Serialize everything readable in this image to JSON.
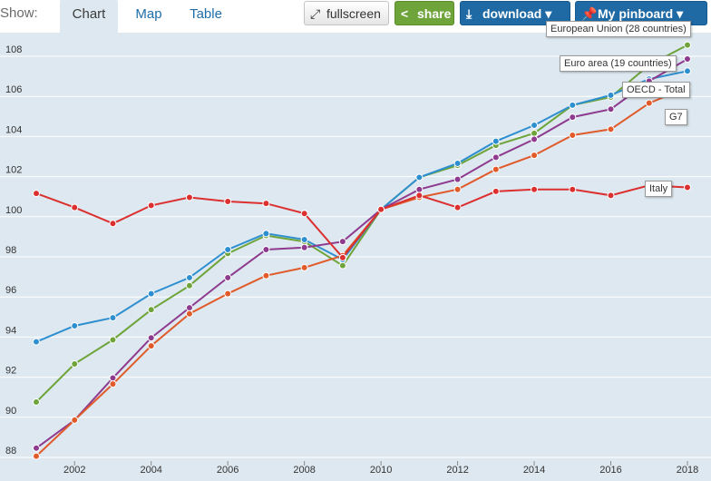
{
  "toolbar": {
    "show_label": "Show:",
    "tabs": [
      {
        "label": "Chart",
        "active": true
      },
      {
        "label": "Map",
        "active": false
      },
      {
        "label": "Table",
        "active": false
      }
    ],
    "fullscreen_label": "fullscreen",
    "share_label": "share",
    "download_label": "download ▾",
    "pinboard_label": "My pinboard ▾",
    "icons": [
      "fullscreen-icon",
      "share-icon",
      "download-icon",
      "pin-icon"
    ],
    "colors": {
      "share": "#6ea43a",
      "download": "#1f6aa5",
      "pinboard": "#1f6aa5"
    }
  },
  "chart_data": {
    "type": "line",
    "x": [
      2001,
      2002,
      2003,
      2004,
      2005,
      2006,
      2007,
      2008,
      2009,
      2010,
      2011,
      2012,
      2013,
      2014,
      2015,
      2016,
      2017,
      2018
    ],
    "x_tick_labels": [
      "2002",
      "2004",
      "2006",
      "2008",
      "2010",
      "2012",
      "2014",
      "2016",
      "2018"
    ],
    "y_tick_labels": [
      "88",
      "90",
      "92",
      "94",
      "96",
      "98",
      "100",
      "102",
      "104",
      "106",
      "108"
    ],
    "ylim": [
      87.3,
      108.8
    ],
    "xlim": [
      2000.9,
      2018.6
    ],
    "grid": true,
    "series": [
      {
        "name": "OECD - Total",
        "color": "#2e8fd0",
        "values": [
          93.4,
          94.2,
          94.6,
          95.8,
          96.6,
          98.0,
          98.8,
          98.5,
          97.5,
          100.0,
          101.6,
          102.3,
          103.4,
          104.2,
          105.2,
          105.7,
          106.5,
          106.9
        ]
      },
      {
        "name": "European Union (28 countries)",
        "color": "#6ea43a",
        "values": [
          90.4,
          92.3,
          93.5,
          95.0,
          96.2,
          97.8,
          98.7,
          98.4,
          97.2,
          100.0,
          101.6,
          102.2,
          103.2,
          103.8,
          105.2,
          105.6,
          107.2,
          108.2
        ]
      },
      {
        "name": "Euro area (19 countries)",
        "color": "#8e3a8e",
        "values": [
          88.1,
          89.5,
          91.6,
          93.6,
          95.1,
          96.6,
          98.0,
          98.1,
          98.4,
          100.0,
          101.0,
          101.5,
          102.6,
          103.5,
          104.6,
          105.0,
          106.4,
          107.5
        ]
      },
      {
        "name": "G7",
        "color": "#e05a2a",
        "values": [
          87.7,
          89.5,
          91.3,
          93.2,
          94.8,
          95.8,
          96.7,
          97.1,
          97.7,
          100.0,
          100.6,
          101.0,
          102.0,
          102.7,
          103.7,
          104.0,
          105.3,
          106.1
        ]
      },
      {
        "name": "Italy",
        "color": "#dc2f2f",
        "values": [
          100.8,
          100.1,
          99.3,
          100.2,
          100.6,
          100.4,
          100.3,
          99.8,
          97.6,
          100.0,
          100.7,
          100.1,
          100.9,
          101.0,
          101.0,
          100.7,
          101.2,
          101.1
        ]
      }
    ],
    "labels": [
      {
        "text": "European Union (28 countries)",
        "series": "European Union (28 countries)"
      },
      {
        "text": "Euro area (19 countries)",
        "series": "Euro area (19 countries)"
      },
      {
        "text": "OECD - Total",
        "series": "OECD - Total"
      },
      {
        "text": "G7",
        "series": "G7"
      },
      {
        "text": "Italy",
        "series": "Italy"
      }
    ]
  }
}
